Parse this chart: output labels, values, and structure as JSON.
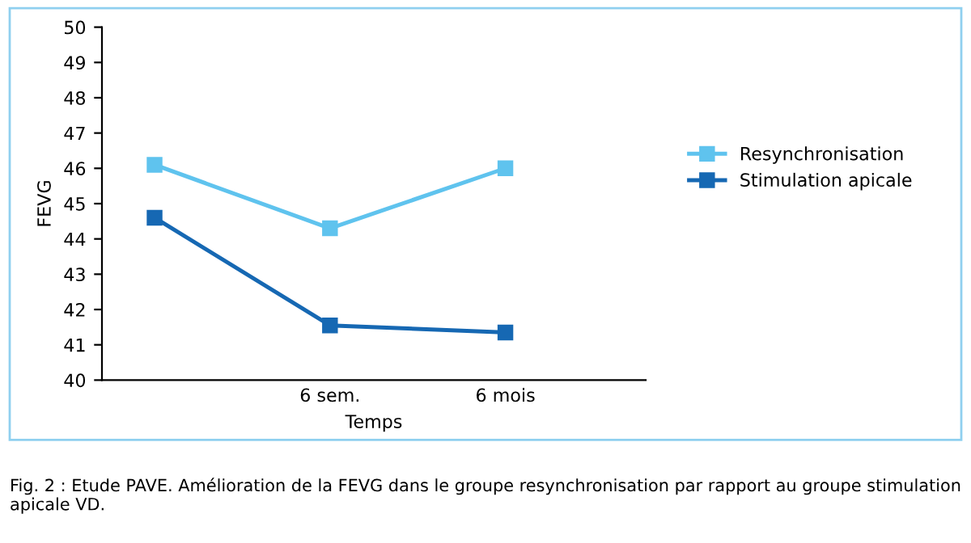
{
  "chart_data": {
    "type": "line",
    "xlabel": "Temps",
    "ylabel": "FEVG",
    "categories": [
      null,
      "6 sem.",
      "6 mois"
    ],
    "series": [
      {
        "name": "Resynchronisation",
        "color": "#5fc3ee",
        "values": [
          46.1,
          44.3,
          46.0
        ]
      },
      {
        "name": "Stimulation apicale",
        "color": "#1668b3",
        "values": [
          44.6,
          41.55,
          41.35
        ]
      }
    ],
    "ylim": [
      40,
      50
    ],
    "yticks": [
      40,
      41,
      42,
      43,
      44,
      45,
      46,
      47,
      48,
      49,
      50
    ],
    "grid": false,
    "legend": "right",
    "marker": "square",
    "line_style": "solid",
    "annotations": [
      "Fig. 2 : Etude PAVE. Amélioration de la FEVG dans le groupe resynchronisation par rapport au groupe stimulation apicale VD."
    ]
  }
}
